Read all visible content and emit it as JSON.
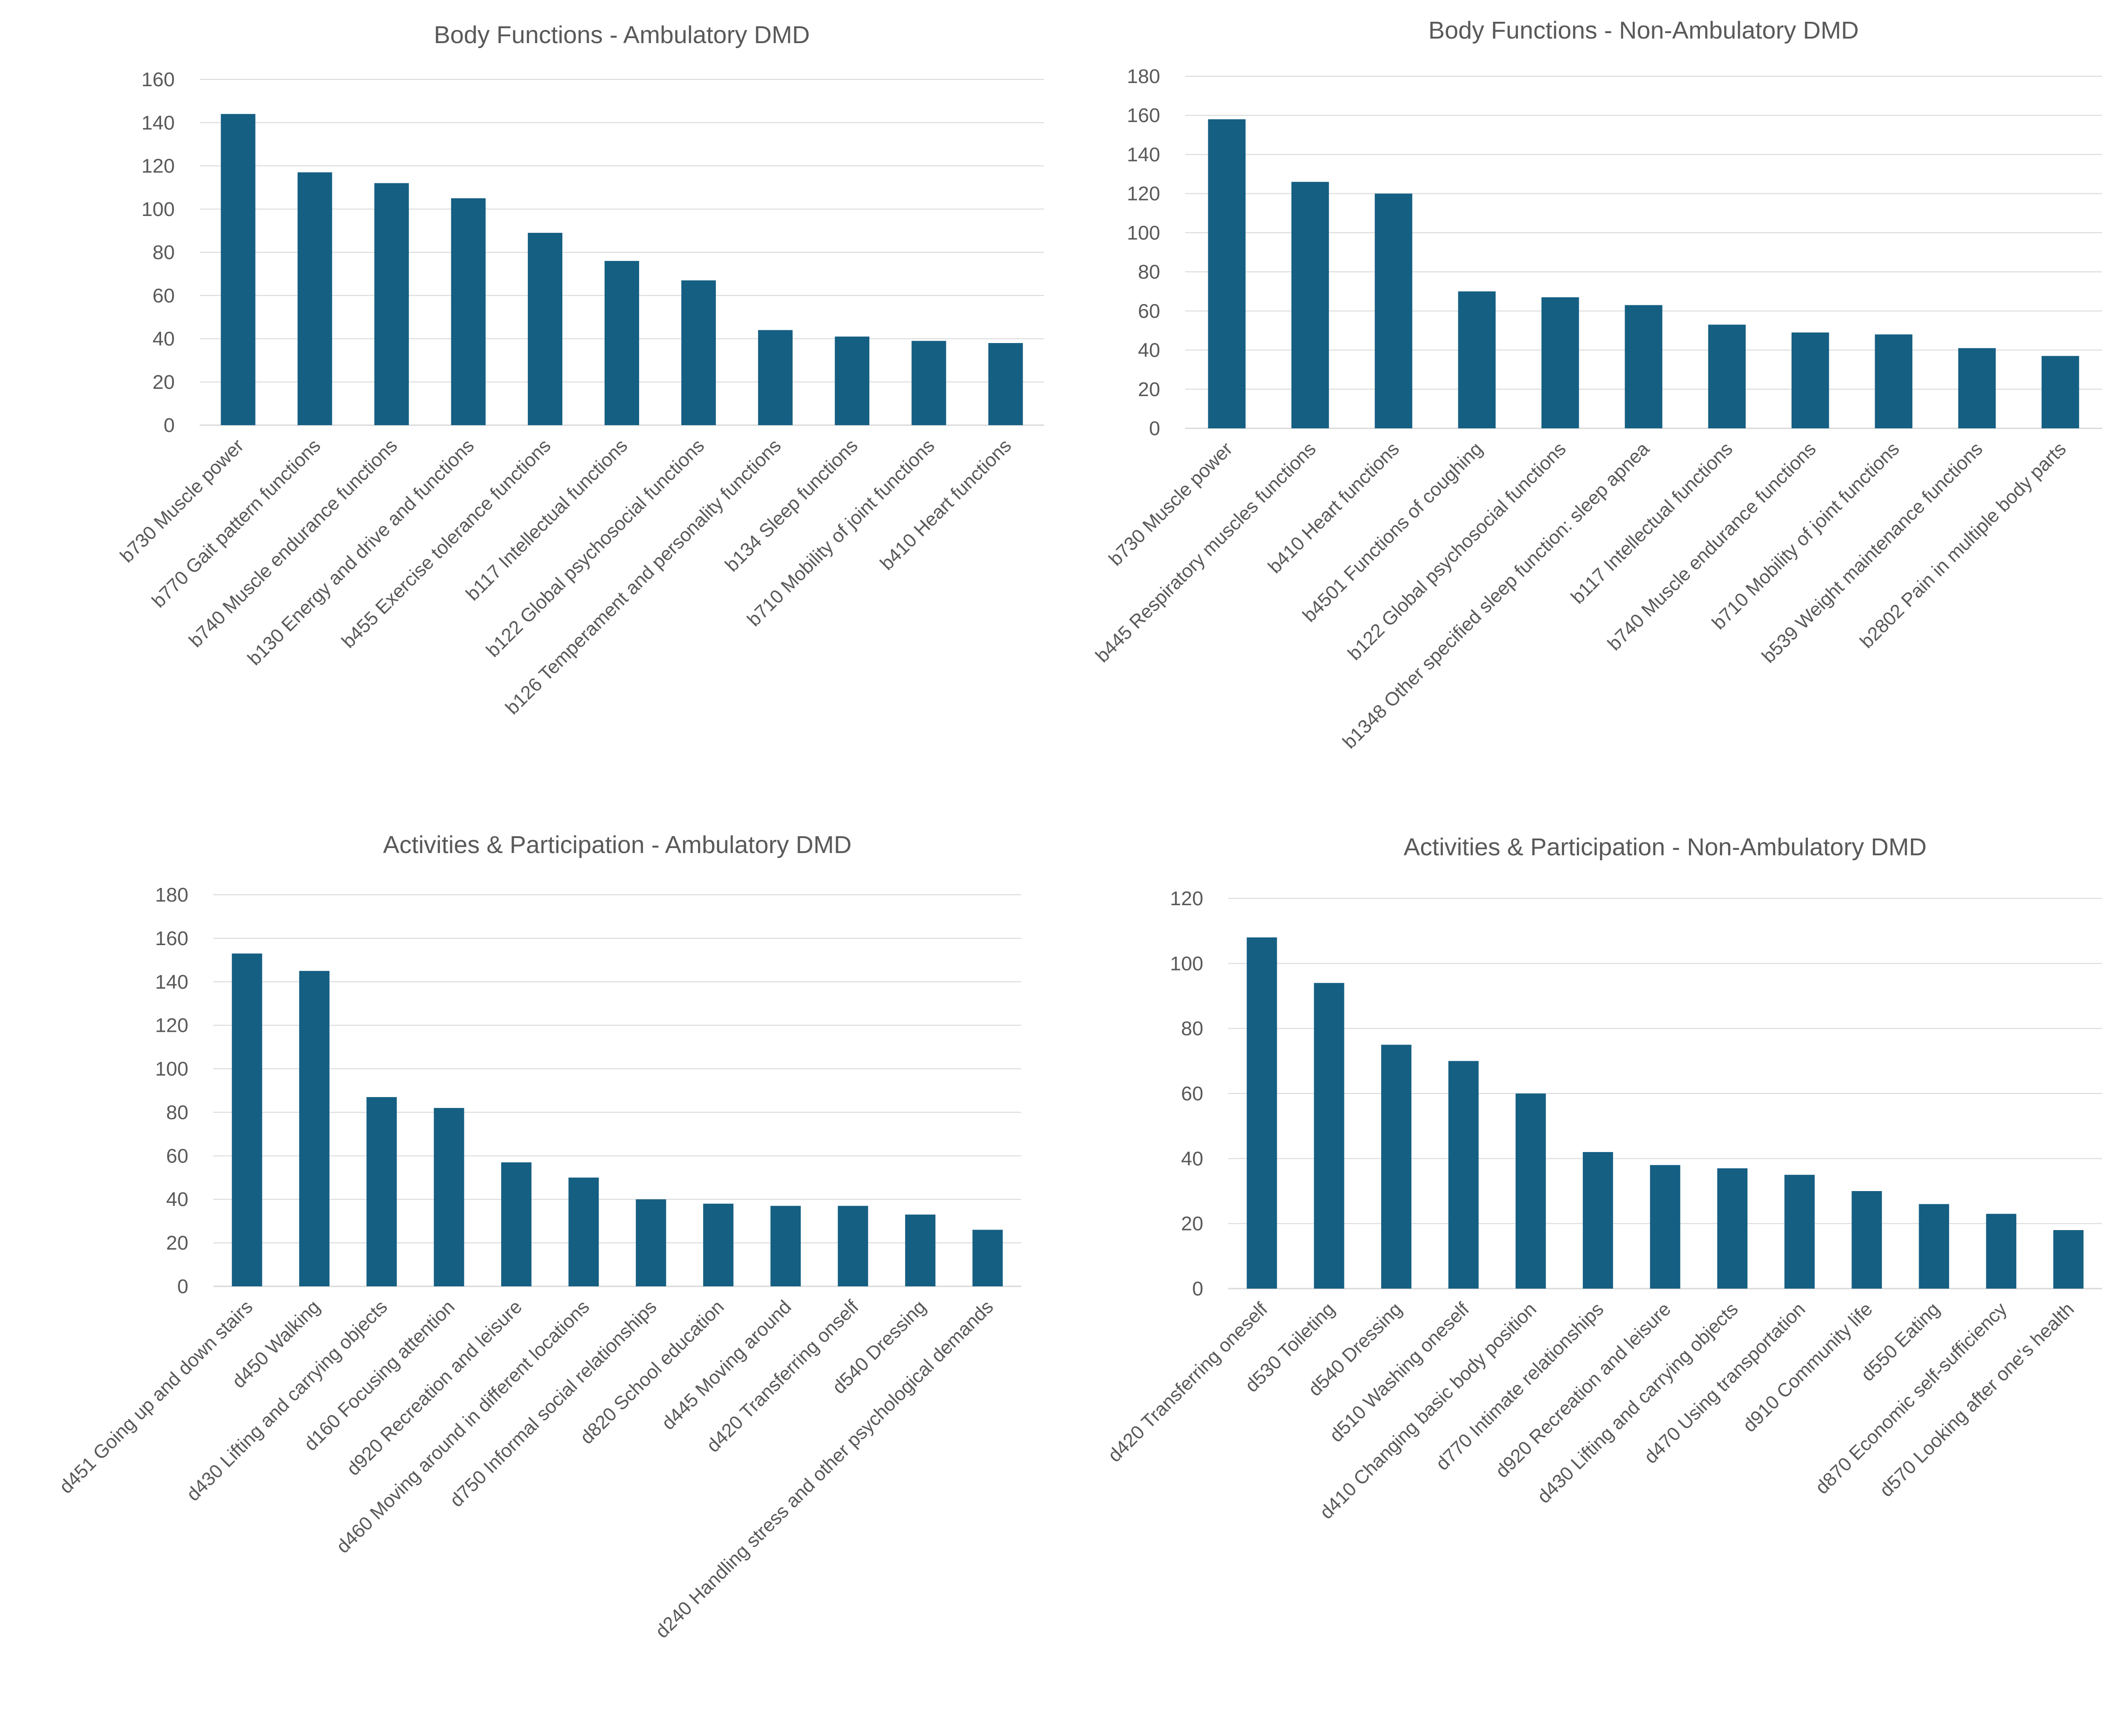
{
  "style": {
    "bar_color": "#155f83",
    "grid_color": "#d9d9d9",
    "text_color": "#595959"
  },
  "chart_data": [
    {
      "type": "bar",
      "title": "Body Functions - Ambulatory DMD",
      "ylim": [
        0,
        160
      ],
      "yticks": [
        0,
        20,
        40,
        60,
        80,
        100,
        120,
        140,
        160
      ],
      "grid": true,
      "categories": [
        "b730 Muscle power",
        "b770 Gait pattern functions",
        "b740 Muscle endurance functions",
        "b130 Energy and drive and functions",
        "b455 Exercise tolerance functions",
        "b117 Intellectual functions",
        "b122 Global psychosocial functions",
        "b126 Temperament and personality functions",
        "b134 Sleep functions",
        "b710 Mobility of joint functions",
        "b410 Heart functions"
      ],
      "values": [
        144,
        117,
        112,
        105,
        89,
        76,
        67,
        44,
        41,
        39,
        38
      ]
    },
    {
      "type": "bar",
      "title": "Body Functions - Non-Ambulatory DMD",
      "ylim": [
        0,
        180
      ],
      "yticks": [
        0,
        20,
        40,
        60,
        80,
        100,
        120,
        140,
        160,
        180
      ],
      "grid": true,
      "categories": [
        "b730 Muscle power",
        "b445 Respiratory muscles functions",
        "b410 Heart functions",
        "b4501 Functions of coughing",
        "b122 Global psychosocial functions",
        "b1348 Other specified sleep function: sleep apnea",
        "b117 Intellectual functions",
        "b740 Muscle endurance functions",
        "b710 Mobility of joint functions",
        "b539 Weight maintenance functions",
        "b2802 Pain in multiple body parts"
      ],
      "values": [
        158,
        126,
        120,
        70,
        67,
        63,
        53,
        49,
        48,
        41,
        37
      ]
    },
    {
      "type": "bar",
      "title": "Activities & Participation - Ambulatory DMD",
      "ylim": [
        0,
        180
      ],
      "yticks": [
        0,
        20,
        40,
        60,
        80,
        100,
        120,
        140,
        160,
        180
      ],
      "grid": true,
      "categories": [
        "d451 Going up and down stairs",
        "d450 Walking",
        "d430 Lifting and carrying objects",
        "d160 Focusing attention",
        "d920 Recreation and leisure",
        "d460 Moving around in different locations",
        "d750 Informal social relationships",
        "d820 School education",
        "d445 Moving around",
        "d420 Transferring onself",
        "d540 Dressing",
        "d240 Handling stress and other psychological demands"
      ],
      "values": [
        153,
        145,
        87,
        82,
        57,
        50,
        40,
        38,
        37,
        37,
        33,
        26
      ]
    },
    {
      "type": "bar",
      "title": "Activities & Participation - Non-Ambulatory DMD",
      "ylim": [
        0,
        120
      ],
      "yticks": [
        0,
        20,
        40,
        60,
        80,
        100,
        120
      ],
      "grid": true,
      "categories": [
        "d420 Transferring oneself",
        "d530 Toileting",
        "d540 Dressing",
        "d510 Washing oneself",
        "d410 Changing basic body position",
        "d770 Intimate relationships",
        "d920 Recreation and leisure",
        "d430 Lifting and carrying objects",
        "d470 Using transportation",
        "d910 Community life",
        "d550 Eating",
        "d870 Economic self-sufficiency",
        "d570 Looking after one's health"
      ],
      "values": [
        108,
        94,
        75,
        70,
        60,
        42,
        38,
        37,
        35,
        30,
        26,
        23,
        18
      ]
    }
  ]
}
